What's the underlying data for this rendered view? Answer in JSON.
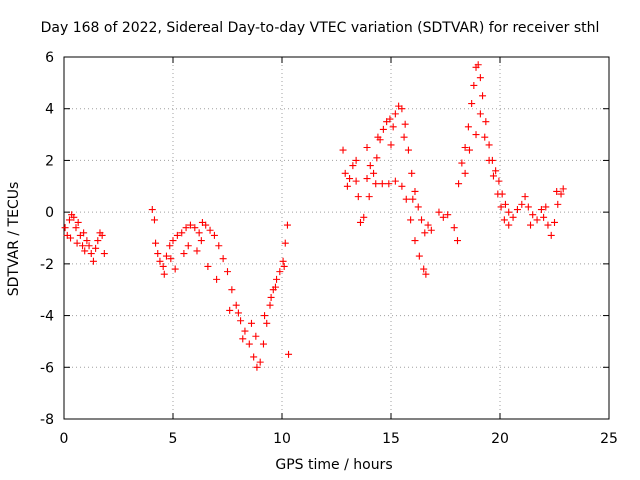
{
  "chart_data": {
    "type": "scatter",
    "title": "Day 168 of 2022, Sidereal Day-to-day VTEC variation (SDTVAR) for receiver sthl",
    "xlabel": "GPS time / hours",
    "ylabel": "SDTVAR / TECUs",
    "xlim": [
      0,
      25
    ],
    "ylim": [
      -8,
      6
    ],
    "xticks": [
      0,
      5,
      10,
      15,
      20,
      25
    ],
    "yticks": [
      -8,
      -6,
      -4,
      -2,
      0,
      2,
      4,
      6
    ],
    "grid": true,
    "marker": "+",
    "color": "#ff0000",
    "series": [
      {
        "name": "SDTVAR",
        "points": [
          [
            0.05,
            -0.6
          ],
          [
            0.15,
            -0.9
          ],
          [
            0.25,
            -0.3
          ],
          [
            0.35,
            -0.1
          ],
          [
            0.45,
            -0.2
          ],
          [
            0.55,
            -0.6
          ],
          [
            0.65,
            -0.4
          ],
          [
            0.75,
            -0.9
          ],
          [
            0.85,
            -1.3
          ],
          [
            0.95,
            -1.5
          ],
          [
            1.05,
            -1.1
          ],
          [
            1.15,
            -1.3
          ],
          [
            1.25,
            -1.6
          ],
          [
            1.35,
            -1.9
          ],
          [
            1.45,
            -1.4
          ],
          [
            1.55,
            -1.1
          ],
          [
            1.65,
            -0.8
          ],
          [
            1.75,
            -0.9
          ],
          [
            1.85,
            -1.6
          ],
          [
            0.3,
            -1.0
          ],
          [
            0.6,
            -1.2
          ],
          [
            0.9,
            -0.8
          ],
          [
            4.05,
            0.1
          ],
          [
            4.15,
            -0.3
          ],
          [
            4.2,
            -1.2
          ],
          [
            4.3,
            -1.6
          ],
          [
            4.4,
            -1.9
          ],
          [
            4.55,
            -2.1
          ],
          [
            4.7,
            -1.7
          ],
          [
            4.85,
            -1.3
          ],
          [
            5.0,
            -1.1
          ],
          [
            5.2,
            -0.9
          ],
          [
            5.4,
            -0.8
          ],
          [
            5.6,
            -0.6
          ],
          [
            5.8,
            -0.5
          ],
          [
            6.0,
            -0.6
          ],
          [
            6.2,
            -0.8
          ],
          [
            6.35,
            -0.4
          ],
          [
            6.5,
            -0.5
          ],
          [
            6.7,
            -0.7
          ],
          [
            6.9,
            -0.9
          ],
          [
            7.1,
            -1.3
          ],
          [
            7.3,
            -1.8
          ],
          [
            7.5,
            -2.3
          ],
          [
            7.7,
            -3.0
          ],
          [
            7.9,
            -3.6
          ],
          [
            8.1,
            -4.2
          ],
          [
            8.3,
            -4.6
          ],
          [
            8.5,
            -5.1
          ],
          [
            8.7,
            -5.6
          ],
          [
            8.85,
            -6.0
          ],
          [
            9.0,
            -5.8
          ],
          [
            9.15,
            -5.1
          ],
          [
            9.3,
            -4.3
          ],
          [
            9.45,
            -3.6
          ],
          [
            9.6,
            -3.0
          ],
          [
            9.75,
            -2.6
          ],
          [
            9.9,
            -2.3
          ],
          [
            10.05,
            -1.9
          ],
          [
            10.15,
            -1.2
          ],
          [
            10.25,
            -0.5
          ],
          [
            10.3,
            -5.5
          ],
          [
            4.6,
            -2.4
          ],
          [
            5.1,
            -2.2
          ],
          [
            5.5,
            -1.6
          ],
          [
            6.1,
            -1.5
          ],
          [
            6.6,
            -2.1
          ],
          [
            7.0,
            -2.6
          ],
          [
            7.6,
            -3.8
          ],
          [
            8.2,
            -4.9
          ],
          [
            8.8,
            -4.8
          ],
          [
            9.2,
            -4.0
          ],
          [
            9.7,
            -2.9
          ],
          [
            10.1,
            -2.1
          ],
          [
            4.9,
            -1.8
          ],
          [
            5.7,
            -1.3
          ],
          [
            6.3,
            -1.1
          ],
          [
            8.0,
            -3.9
          ],
          [
            8.6,
            -4.3
          ],
          [
            9.5,
            -3.3
          ],
          [
            12.8,
            2.4
          ],
          [
            12.9,
            1.5
          ],
          [
            13.0,
            1.0
          ],
          [
            13.1,
            1.3
          ],
          [
            13.25,
            1.8
          ],
          [
            13.4,
            1.2
          ],
          [
            13.5,
            0.6
          ],
          [
            13.6,
            -0.4
          ],
          [
            13.75,
            -0.2
          ],
          [
            13.9,
            1.3
          ],
          [
            14.05,
            1.8
          ],
          [
            14.2,
            1.5
          ],
          [
            14.35,
            2.1
          ],
          [
            14.5,
            2.8
          ],
          [
            14.65,
            3.2
          ],
          [
            14.8,
            3.5
          ],
          [
            14.95,
            3.6
          ],
          [
            15.1,
            3.3
          ],
          [
            15.2,
            3.8
          ],
          [
            15.35,
            4.1
          ],
          [
            15.5,
            4.0
          ],
          [
            15.65,
            3.4
          ],
          [
            15.8,
            2.4
          ],
          [
            15.95,
            1.5
          ],
          [
            16.1,
            0.8
          ],
          [
            16.25,
            0.2
          ],
          [
            16.4,
            -0.3
          ],
          [
            16.55,
            -0.8
          ],
          [
            16.7,
            -0.5
          ],
          [
            16.85,
            -0.7
          ],
          [
            14.0,
            0.6
          ],
          [
            14.3,
            1.1
          ],
          [
            14.6,
            1.1
          ],
          [
            14.9,
            1.1
          ],
          [
            15.2,
            1.2
          ],
          [
            15.5,
            1.0
          ],
          [
            15.7,
            0.5
          ],
          [
            15.9,
            -0.3
          ],
          [
            16.1,
            -1.1
          ],
          [
            16.3,
            -1.7
          ],
          [
            16.5,
            -2.2
          ],
          [
            16.6,
            -2.4
          ],
          [
            13.4,
            2.0
          ],
          [
            13.9,
            2.5
          ],
          [
            14.4,
            2.9
          ],
          [
            15.0,
            2.6
          ],
          [
            15.6,
            2.9
          ],
          [
            16.0,
            0.5
          ],
          [
            17.2,
            0.0
          ],
          [
            17.4,
            -0.2
          ],
          [
            17.6,
            -0.1
          ],
          [
            17.9,
            -0.6
          ],
          [
            18.05,
            -1.1
          ],
          [
            18.1,
            1.1
          ],
          [
            18.25,
            1.9
          ],
          [
            18.4,
            2.5
          ],
          [
            18.55,
            3.3
          ],
          [
            18.7,
            4.2
          ],
          [
            18.8,
            4.9
          ],
          [
            18.9,
            5.6
          ],
          [
            19.0,
            5.7
          ],
          [
            19.1,
            5.2
          ],
          [
            19.2,
            4.5
          ],
          [
            19.35,
            3.5
          ],
          [
            19.5,
            2.6
          ],
          [
            19.65,
            2.0
          ],
          [
            19.8,
            1.6
          ],
          [
            19.95,
            1.2
          ],
          [
            20.1,
            0.7
          ],
          [
            20.25,
            0.3
          ],
          [
            20.4,
            0.0
          ],
          [
            18.4,
            1.5
          ],
          [
            18.6,
            2.4
          ],
          [
            18.9,
            3.0
          ],
          [
            19.1,
            3.8
          ],
          [
            19.3,
            2.9
          ],
          [
            19.5,
            2.0
          ],
          [
            19.7,
            1.4
          ],
          [
            19.9,
            0.7
          ],
          [
            20.05,
            0.2
          ],
          [
            20.2,
            -0.3
          ],
          [
            20.4,
            -0.5
          ],
          [
            20.6,
            -0.2
          ],
          [
            20.8,
            0.1
          ],
          [
            21.0,
            0.3
          ],
          [
            21.15,
            0.6
          ],
          [
            21.3,
            0.2
          ],
          [
            21.5,
            -0.1
          ],
          [
            21.7,
            -0.3
          ],
          [
            21.9,
            0.1
          ],
          [
            22.1,
            0.2
          ],
          [
            22.2,
            -0.5
          ],
          [
            22.35,
            -0.9
          ],
          [
            22.5,
            -0.4
          ],
          [
            22.65,
            0.3
          ],
          [
            22.8,
            0.7
          ],
          [
            22.9,
            0.9
          ],
          [
            21.4,
            -0.5
          ],
          [
            22.0,
            -0.2
          ],
          [
            22.6,
            0.8
          ]
        ]
      }
    ]
  }
}
